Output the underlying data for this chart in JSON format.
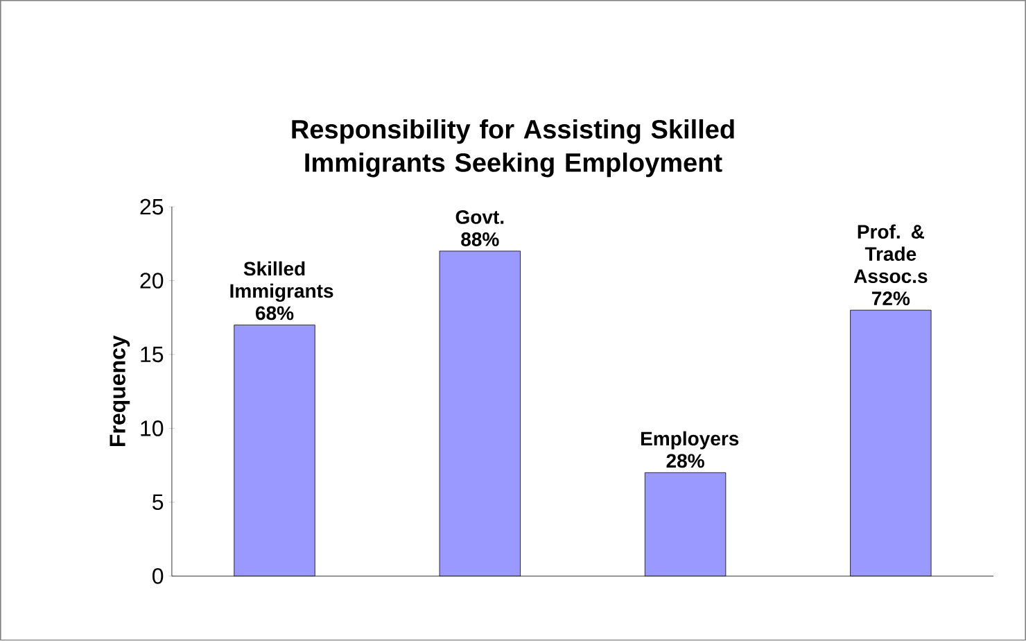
{
  "chart_data": {
    "type": "bar",
    "title": "Responsibility for Assisting Skilled Immigrants Seeking Employment",
    "ylabel": "Frequency",
    "categories": [
      null,
      null,
      null,
      null
    ],
    "values": [
      17,
      22,
      7,
      18
    ],
    "color": "#9999ff",
    "annotations": [
      "Skilled Immigrants 68%",
      "Govt. 88%",
      "Employers 28%",
      "Prof. & Trade Assoc.s 72%"
    ],
    "ylim": [
      0,
      25
    ],
    "yticks": [
      0,
      5,
      10,
      15,
      20,
      25
    ]
  }
}
